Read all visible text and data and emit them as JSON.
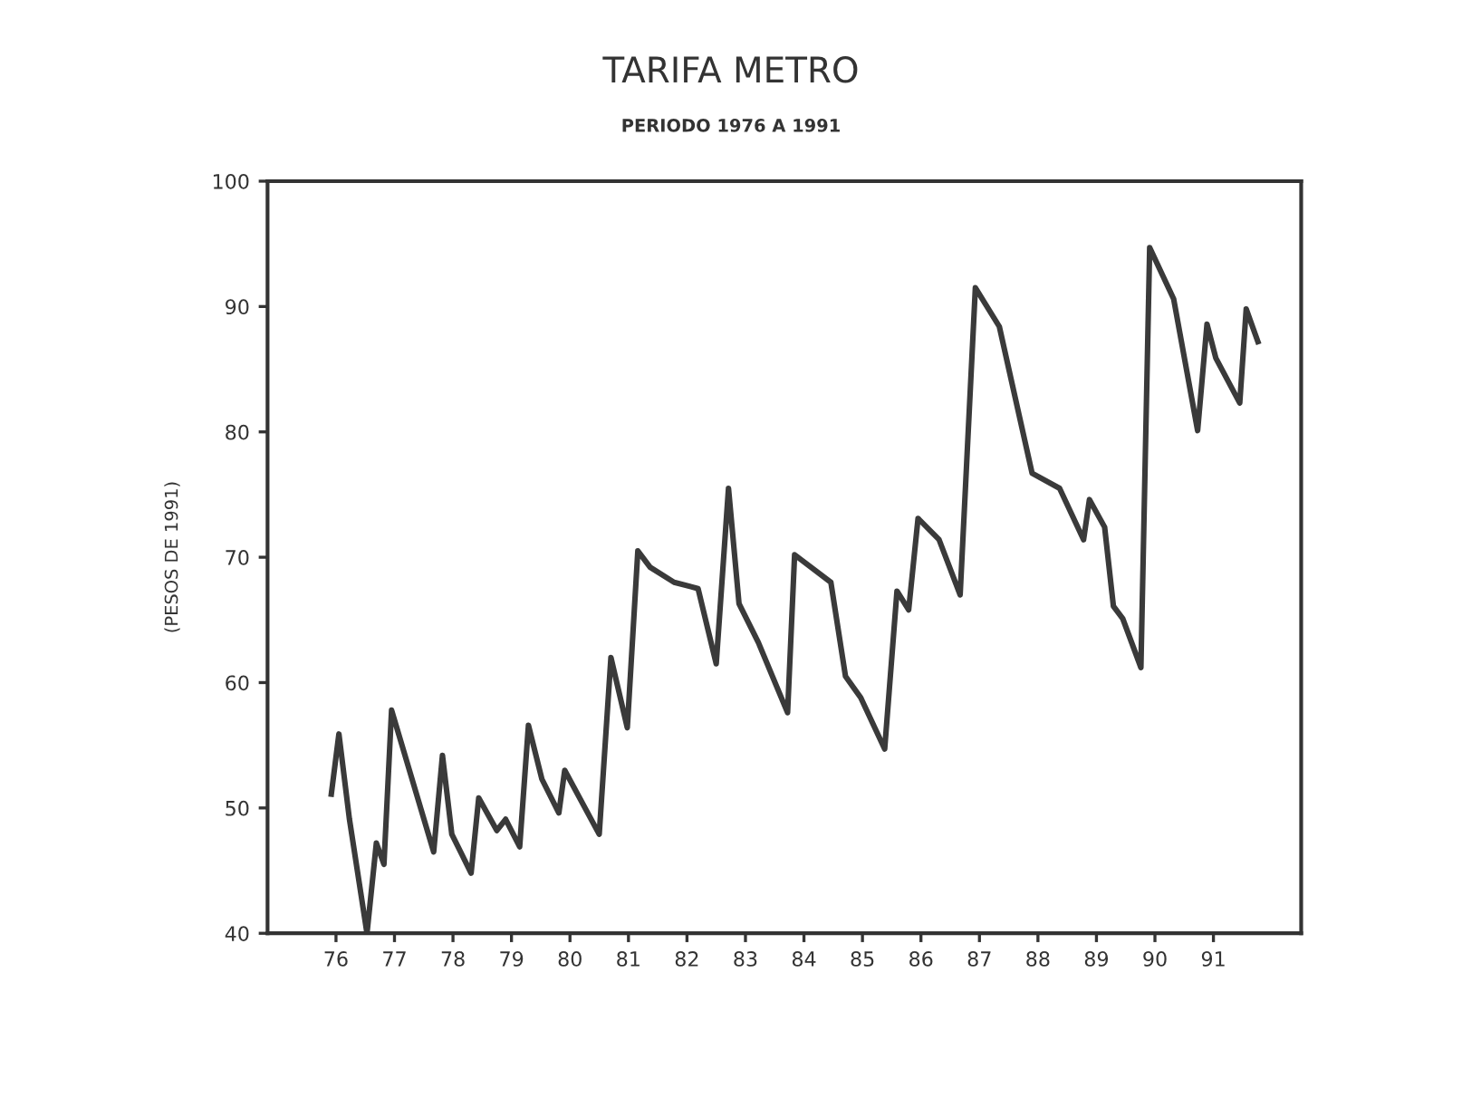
{
  "chart_data": {
    "type": "line",
    "title": "TARIFA METRO",
    "subtitle": "PERIODO 1976 A 1991",
    "ylabel": "(PESOS DE 1991)",
    "x": [
      75.92,
      76.05,
      76.23,
      76.53,
      76.69,
      76.82,
      76.95,
      77.67,
      77.82,
      77.98,
      78.31,
      78.44,
      78.75,
      78.9,
      79.14,
      79.29,
      79.52,
      79.81,
      79.91,
      80.5,
      80.7,
      80.98,
      81.16,
      81.37,
      81.78,
      82.19,
      82.5,
      82.71,
      82.89,
      83.22,
      83.72,
      83.84,
      84.46,
      84.71,
      84.97,
      85.38,
      85.59,
      85.79,
      85.95,
      86.31,
      86.67,
      86.93,
      87.34,
      87.9,
      88.37,
      88.78,
      88.88,
      89.14,
      89.29,
      89.45,
      89.76,
      89.91,
      90.32,
      90.73,
      90.89,
      91.04,
      91.45,
      91.56,
      91.76
    ],
    "series": [
      {
        "color": "#3a3a3a",
        "values": [
          51.1,
          55.9,
          49.1,
          40.0,
          47.2,
          45.5,
          57.8,
          46.5,
          54.2,
          47.9,
          44.8,
          50.8,
          48.2,
          49.1,
          46.9,
          56.6,
          52.3,
          49.6,
          53.0,
          47.9,
          62.0,
          56.4,
          70.5,
          69.2,
          68.0,
          67.5,
          61.5,
          75.5,
          66.3,
          63.2,
          57.6,
          70.2,
          68.0,
          60.5,
          58.8,
          54.7,
          67.3,
          65.8,
          73.1,
          71.4,
          67.0,
          91.5,
          88.4,
          76.7,
          75.5,
          71.4,
          74.6,
          72.4,
          66.1,
          65.1,
          61.2,
          94.7,
          90.6,
          80.1,
          88.6,
          85.9,
          82.3,
          89.8,
          87.2
        ]
      }
    ],
    "xlim": [
      74.83,
      92.5
    ],
    "xticks": [
      76,
      77,
      78,
      79,
      80,
      81,
      82,
      83,
      84,
      85,
      86,
      87,
      88,
      89,
      90,
      91
    ],
    "ylim": [
      40,
      100
    ],
    "yticks": [
      40,
      50,
      60,
      70,
      80,
      90,
      100
    ],
    "grid": false,
    "marker": "none",
    "line_style": "solid"
  }
}
